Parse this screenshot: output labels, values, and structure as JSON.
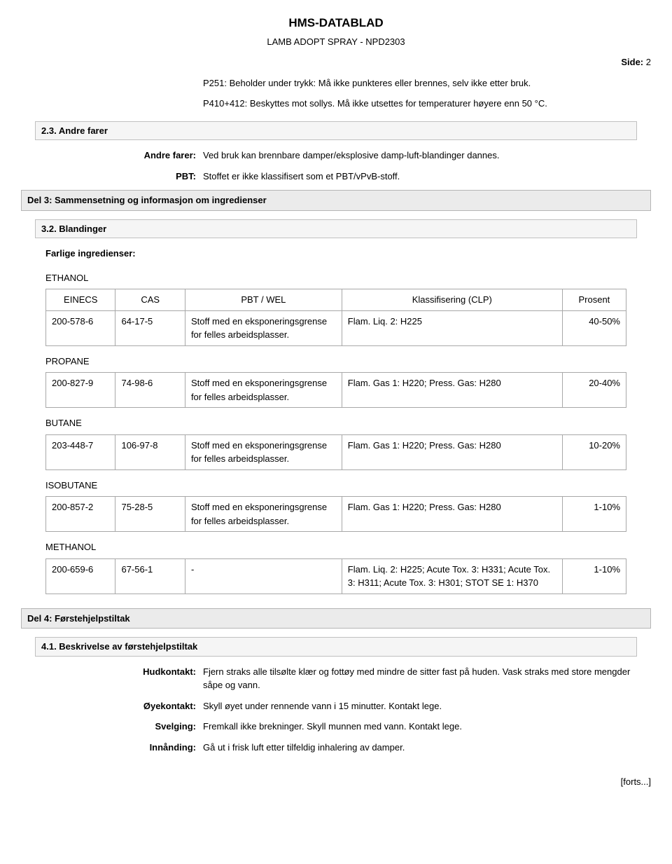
{
  "header": {
    "main_title": "HMS-DATABLAD",
    "sub_title": "LAMB ADOPT SPRAY - NPD2303"
  },
  "page_indicator": {
    "label": "Side:",
    "number": "2"
  },
  "p_statements": [
    "P251: Beholder under trykk: Må ikke punkteres eller brennes, selv ikke etter bruk.",
    "P410+412: Beskyttes mot sollys. Må ikke utsettes for temperaturer høyere enn 50 °C."
  ],
  "section_2_3": {
    "title": "2.3. Andre farer",
    "rows": [
      {
        "label": "Andre farer:",
        "value": "Ved bruk kan brennbare damper/eksplosive damp-luft-blandinger dannes."
      },
      {
        "label": "PBT:",
        "value": "Stoffet er ikke klassifisert som et PBT/vPvB-stoff."
      }
    ]
  },
  "section_3": {
    "title": "Del 3: Sammensetning og informasjon om ingredienser",
    "sub_3_2": "3.2. Blandinger",
    "ingredients_title": "Farlige ingredienser:",
    "columns": [
      "EINECS",
      "CAS",
      "PBT / WEL",
      "Klassifisering (CLP)",
      "Prosent"
    ],
    "ingredients": [
      {
        "name": "ETHANOL",
        "einecs": "200-578-6",
        "cas": "64-17-5",
        "pbt": "Stoff med en eksponeringsgrense for felles arbeidsplasser.",
        "clp": "Flam. Liq. 2: H225",
        "percent": "40-50%"
      },
      {
        "name": "PROPANE",
        "einecs": "200-827-9",
        "cas": "74-98-6",
        "pbt": "Stoff med en eksponeringsgrense for felles arbeidsplasser.",
        "clp": "Flam. Gas 1: H220; Press. Gas: H280",
        "percent": "20-40%"
      },
      {
        "name": "BUTANE",
        "einecs": "203-448-7",
        "cas": "106-97-8",
        "pbt": "Stoff med en eksponeringsgrense for felles arbeidsplasser.",
        "clp": "Flam. Gas 1: H220; Press. Gas: H280",
        "percent": "10-20%"
      },
      {
        "name": "ISOBUTANE",
        "einecs": "200-857-2",
        "cas": "75-28-5",
        "pbt": "Stoff med en eksponeringsgrense for felles arbeidsplasser.",
        "clp": "Flam. Gas 1: H220; Press. Gas: H280",
        "percent": "1-10%"
      },
      {
        "name": "METHANOL",
        "einecs": "200-659-6",
        "cas": "67-56-1",
        "pbt": "-",
        "clp": "Flam. Liq. 2: H225; Acute Tox. 3: H331; Acute Tox. 3: H311; Acute Tox. 3: H301; STOT SE 1: H370",
        "percent": "1-10%"
      }
    ]
  },
  "section_4": {
    "title": "Del 4: Førstehjelpstiltak",
    "sub_4_1": "4.1. Beskrivelse av førstehjelpstiltak",
    "rows": [
      {
        "label": "Hudkontakt:",
        "value": "Fjern straks alle tilsølte klær og fottøy med mindre de sitter fast på huden. Vask straks med store mengder såpe og vann."
      },
      {
        "label": "Øyekontakt:",
        "value": "Skyll øyet under rennende vann i 15 minutter. Kontakt lege."
      },
      {
        "label": "Svelging:",
        "value": "Fremkall ikke brekninger. Skyll munnen med vann. Kontakt lege."
      },
      {
        "label": "Innånding:",
        "value": "Gå ut i frisk luft etter tilfeldig inhalering av damper."
      }
    ]
  },
  "footer_cont": "[forts...]"
}
